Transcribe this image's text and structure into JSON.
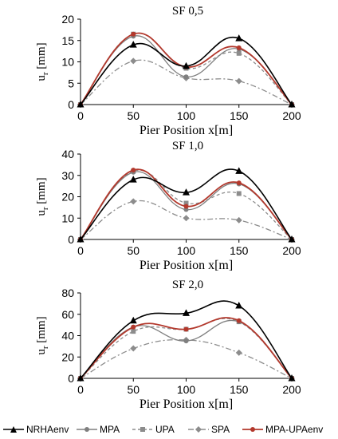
{
  "chart_data": [
    {
      "type": "line",
      "title": "SF 0,5",
      "xlabel": "Pier Position x[m]",
      "ylabel": "u",
      "ylabel_sub": "r",
      "ylabel_unit": " [mm]",
      "x": [
        0,
        50,
        100,
        150,
        200
      ],
      "xticks": [
        0,
        50,
        100,
        150,
        200
      ],
      "yticks": [
        0,
        5,
        10,
        15,
        20
      ],
      "ylim": [
        0,
        20
      ],
      "series": [
        {
          "name": "NRHAenv",
          "values": [
            0,
            14.0,
            9.0,
            15.5,
            0
          ]
        },
        {
          "name": "MPA",
          "values": [
            0,
            16.0,
            6.5,
            13.0,
            0
          ]
        },
        {
          "name": "UPA",
          "values": [
            0,
            16.5,
            8.5,
            12.0,
            0
          ]
        },
        {
          "name": "SPA",
          "values": [
            0,
            10.2,
            6.2,
            5.5,
            0
          ]
        },
        {
          "name": "MPA-UPAenv",
          "values": [
            0,
            16.5,
            8.8,
            13.3,
            0
          ]
        }
      ]
    },
    {
      "type": "line",
      "title": "SF 1,0",
      "xlabel": "Pier Position x[m]",
      "ylabel": "u",
      "ylabel_sub": "r",
      "ylabel_unit": " [mm]",
      "x": [
        0,
        50,
        100,
        150,
        200
      ],
      "xticks": [
        0,
        50,
        100,
        150,
        200
      ],
      "yticks": [
        0,
        10,
        20,
        30,
        40
      ],
      "ylim": [
        0,
        40
      ],
      "series": [
        {
          "name": "NRHAenv",
          "values": [
            0,
            28.0,
            22.0,
            32.0,
            0
          ]
        },
        {
          "name": "MPA",
          "values": [
            0,
            31.5,
            14.0,
            26.0,
            0
          ]
        },
        {
          "name": "UPA",
          "values": [
            0,
            32.0,
            17.0,
            21.5,
            0
          ]
        },
        {
          "name": "SPA",
          "values": [
            0,
            17.8,
            10.0,
            9.0,
            0
          ]
        },
        {
          "name": "MPA-UPAenv",
          "values": [
            0,
            32.5,
            15.5,
            26.5,
            0
          ]
        }
      ]
    },
    {
      "type": "line",
      "title": "SF 2,0",
      "xlabel": "Pier Position x[m]",
      "ylabel": "u",
      "ylabel_sub": "r",
      "ylabel_unit": " [mm]",
      "x": [
        0,
        50,
        100,
        150,
        200
      ],
      "xticks": [
        0,
        50,
        100,
        150,
        200
      ],
      "yticks": [
        0,
        20,
        40,
        60,
        80
      ],
      "ylim": [
        0,
        80
      ],
      "series": [
        {
          "name": "NRHAenv",
          "values": [
            0,
            54.0,
            61.0,
            68.0,
            0
          ]
        },
        {
          "name": "MPA",
          "values": [
            0,
            48.0,
            35.0,
            53.0,
            0
          ]
        },
        {
          "name": "UPA",
          "values": [
            0,
            44.0,
            46.0,
            53.0,
            0
          ]
        },
        {
          "name": "SPA",
          "values": [
            0,
            28.0,
            36.0,
            24.0,
            0
          ]
        },
        {
          "name": "MPA-UPAenv",
          "values": [
            0,
            48.0,
            46.0,
            54.0,
            0
          ]
        }
      ]
    }
  ],
  "legend": [
    {
      "name": "NRHAenv",
      "color": "#000000",
      "dash": "",
      "marker": "triangle"
    },
    {
      "name": "MPA",
      "color": "#7f7f7f",
      "dash": "",
      "marker": "circle"
    },
    {
      "name": "UPA",
      "color": "#8c8c8c",
      "dash": "4 3",
      "marker": "square"
    },
    {
      "name": "SPA",
      "color": "#8c8c8c",
      "dash": "7 3 2 3",
      "marker": "diamond"
    },
    {
      "name": "MPA-UPAenv",
      "color": "#b3382c",
      "dash": "",
      "marker": "circle"
    }
  ]
}
